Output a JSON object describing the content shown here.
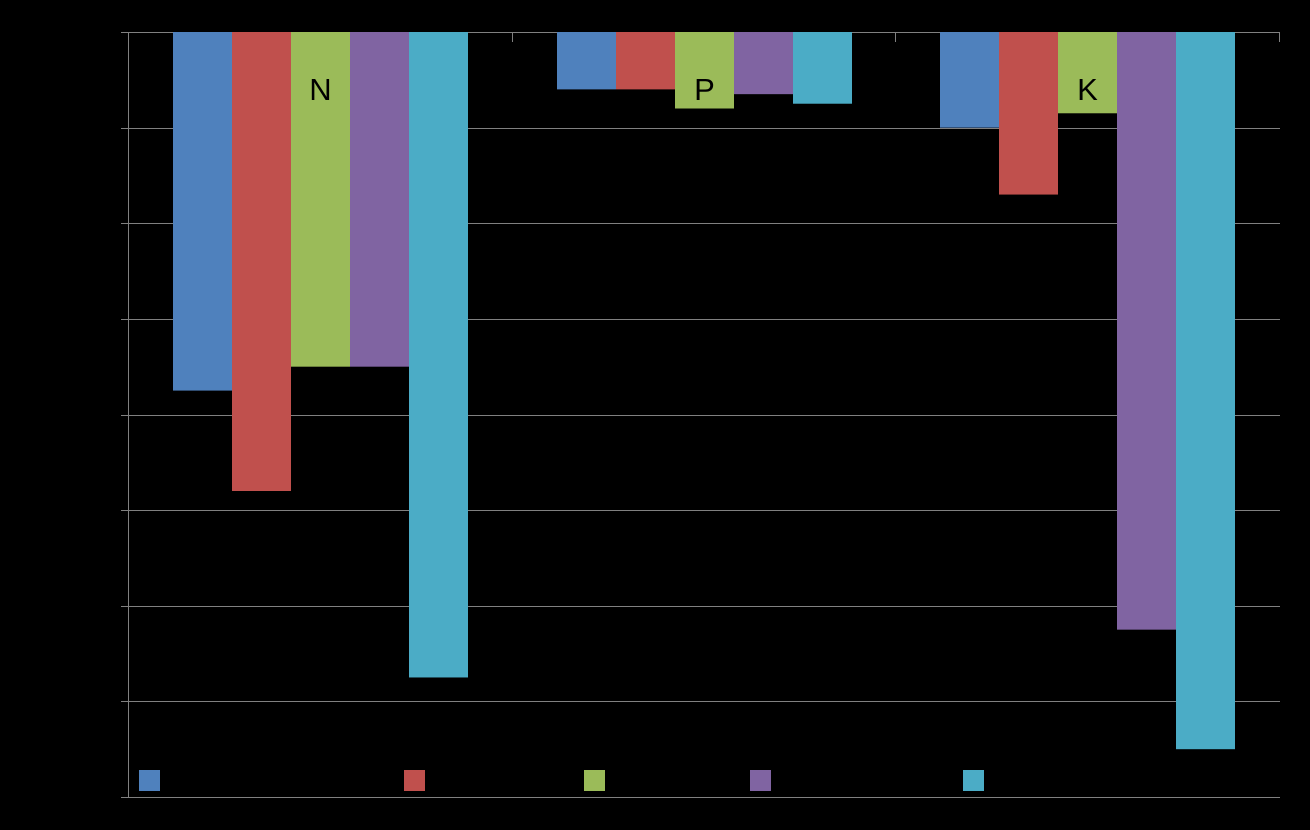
{
  "chart_data": {
    "type": "bar",
    "orientation": "vertical",
    "value_axis": "downward",
    "categories": [
      "N",
      "P",
      "K"
    ],
    "series": [
      {
        "color": "#4F81BD",
        "values": [
          3.75,
          0.6,
          1.0
        ]
      },
      {
        "color": "#C0504D",
        "values": [
          4.8,
          0.6,
          1.7
        ]
      },
      {
        "color": "#9BBB59",
        "values": [
          3.5,
          0.8,
          0.85
        ]
      },
      {
        "color": "#8064A2",
        "values": [
          3.5,
          0.65,
          6.25
        ]
      },
      {
        "color": "#4BACC6",
        "values": [
          6.75,
          0.75,
          7.5
        ]
      }
    ],
    "ylim": [
      0,
      8
    ],
    "grid": true,
    "gridline_color": "#808080",
    "legend": "bottom",
    "background": "#000000",
    "title": "",
    "xlabel": "",
    "ylabel": ""
  }
}
